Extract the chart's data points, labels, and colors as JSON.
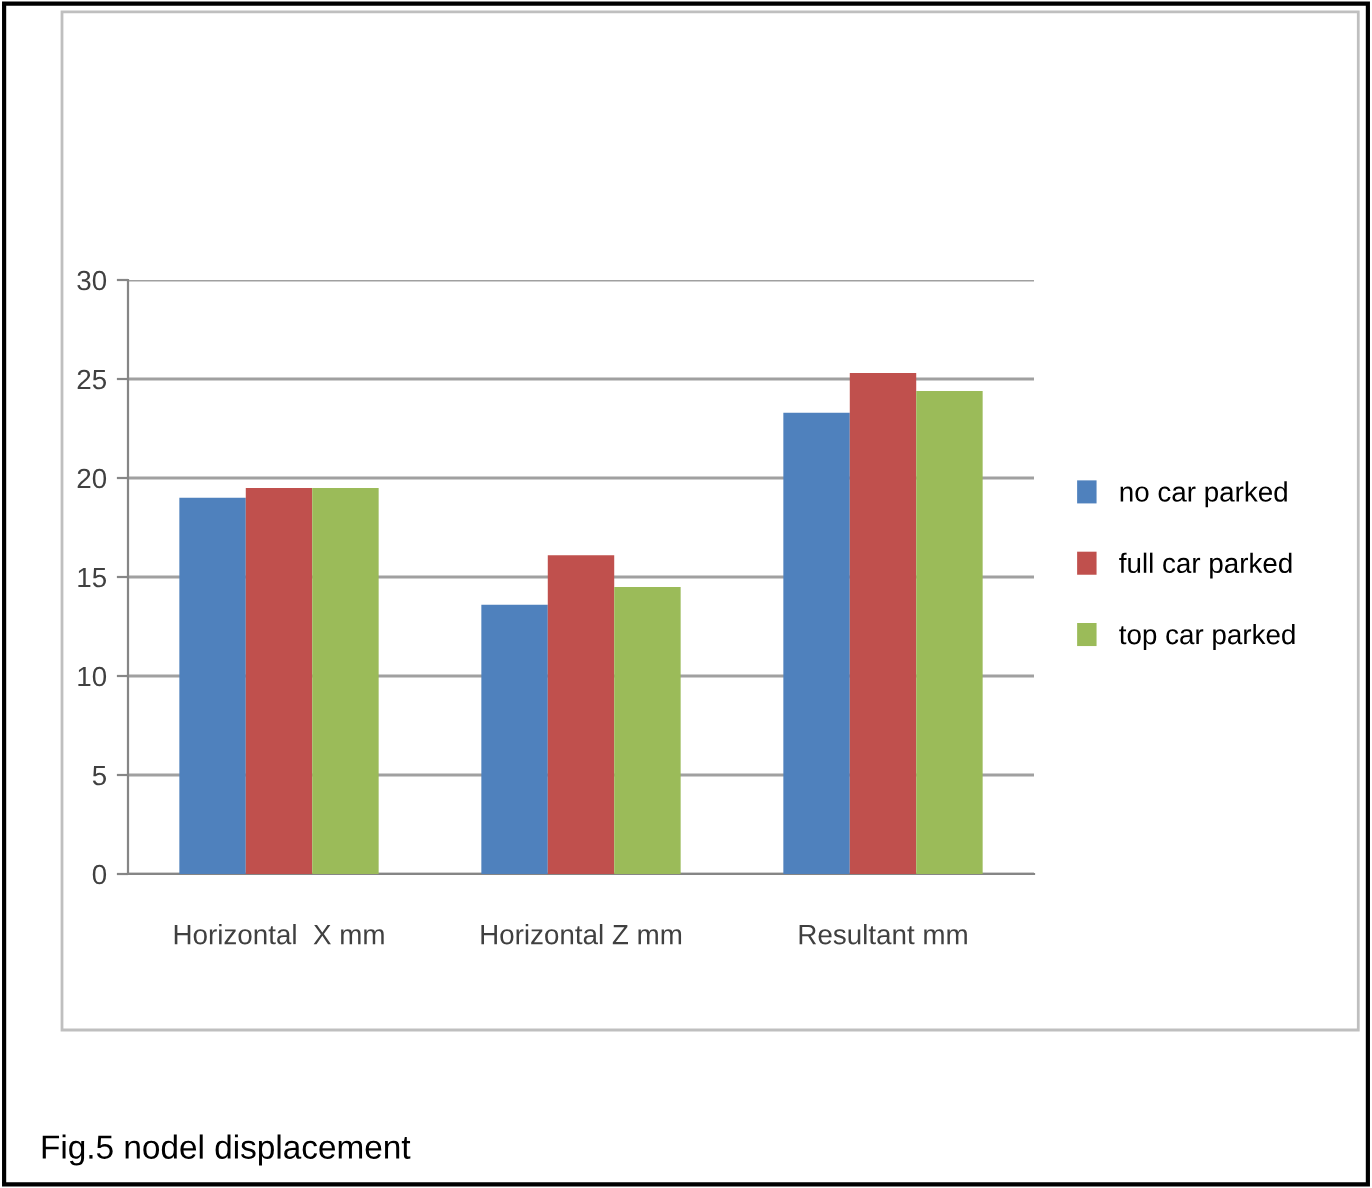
{
  "chart_data": {
    "type": "bar",
    "categories": [
      "Horizontal  X mm",
      "Horizontal Z mm",
      "Resultant mm"
    ],
    "series": [
      {
        "name": "no car parked",
        "color": "#4f81bd",
        "values": [
          19.0,
          13.6,
          23.3
        ]
      },
      {
        "name": "full car parked",
        "color": "#c0504d",
        "values": [
          19.5,
          16.1,
          25.3
        ]
      },
      {
        "name": "top car parked",
        "color": "#9bbb59",
        "values": [
          19.5,
          14.5,
          24.4
        ]
      }
    ],
    "ylim": [
      0,
      30
    ],
    "yticks": [
      0,
      5,
      10,
      15,
      20,
      25,
      30
    ],
    "grid": "y",
    "legend": "right",
    "annotations": [
      "Fig.5 nodel displacement"
    ]
  }
}
